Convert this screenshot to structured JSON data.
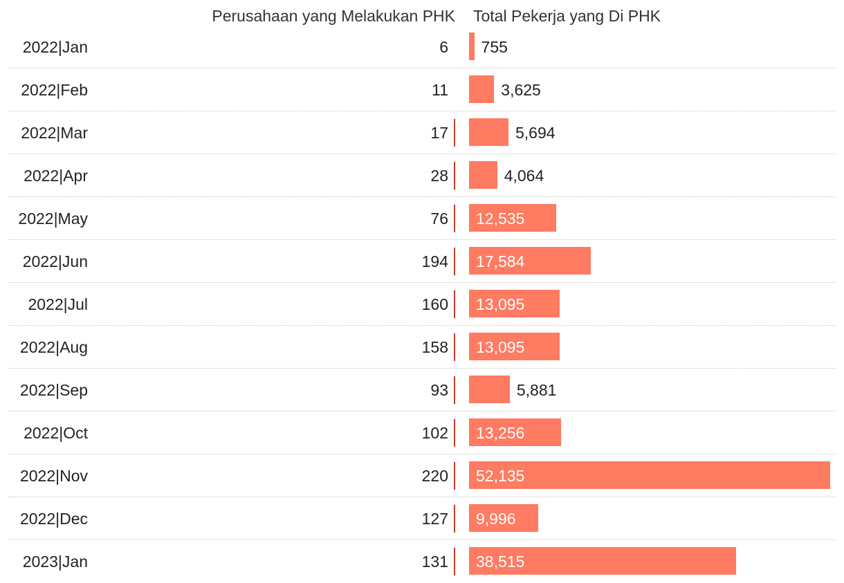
{
  "chart_data": {
    "type": "table",
    "columns": [
      "Perusahaan yang Melakukan PHK",
      "Total Pekerja yang Di PHK"
    ],
    "categories": [
      "2022|Jan",
      "2022|Feb",
      "2022|Mar",
      "2022|Apr",
      "2022|May",
      "2022|Jun",
      "2022|Jul",
      "2022|Aug",
      "2022|Sep",
      "2022|Oct",
      "2022|Nov",
      "2022|Dec",
      "2023|Jan"
    ],
    "companies": [
      6,
      11,
      17,
      28,
      76,
      194,
      160,
      158,
      93,
      102,
      220,
      127,
      131
    ],
    "companies_labels": [
      "6",
      "11",
      "17",
      "28",
      "76",
      "194",
      "160",
      "158",
      "93",
      "102",
      "220",
      "127",
      "131"
    ],
    "workers": [
      755,
      3625,
      5694,
      4064,
      12535,
      17584,
      13095,
      13095,
      5881,
      13256,
      52135,
      9996,
      38515
    ],
    "workers_labels": [
      "755",
      "3,625",
      "5,694",
      "4,064",
      "12,535",
      "17,584",
      "13,095",
      "13,095",
      "5,881",
      "13,256",
      "52,135",
      "9,996",
      "38,515"
    ],
    "workers_max": 52135,
    "bar_color": "#ff7b61",
    "tick_color": "#c0392b",
    "grid": false,
    "legend": "none"
  }
}
